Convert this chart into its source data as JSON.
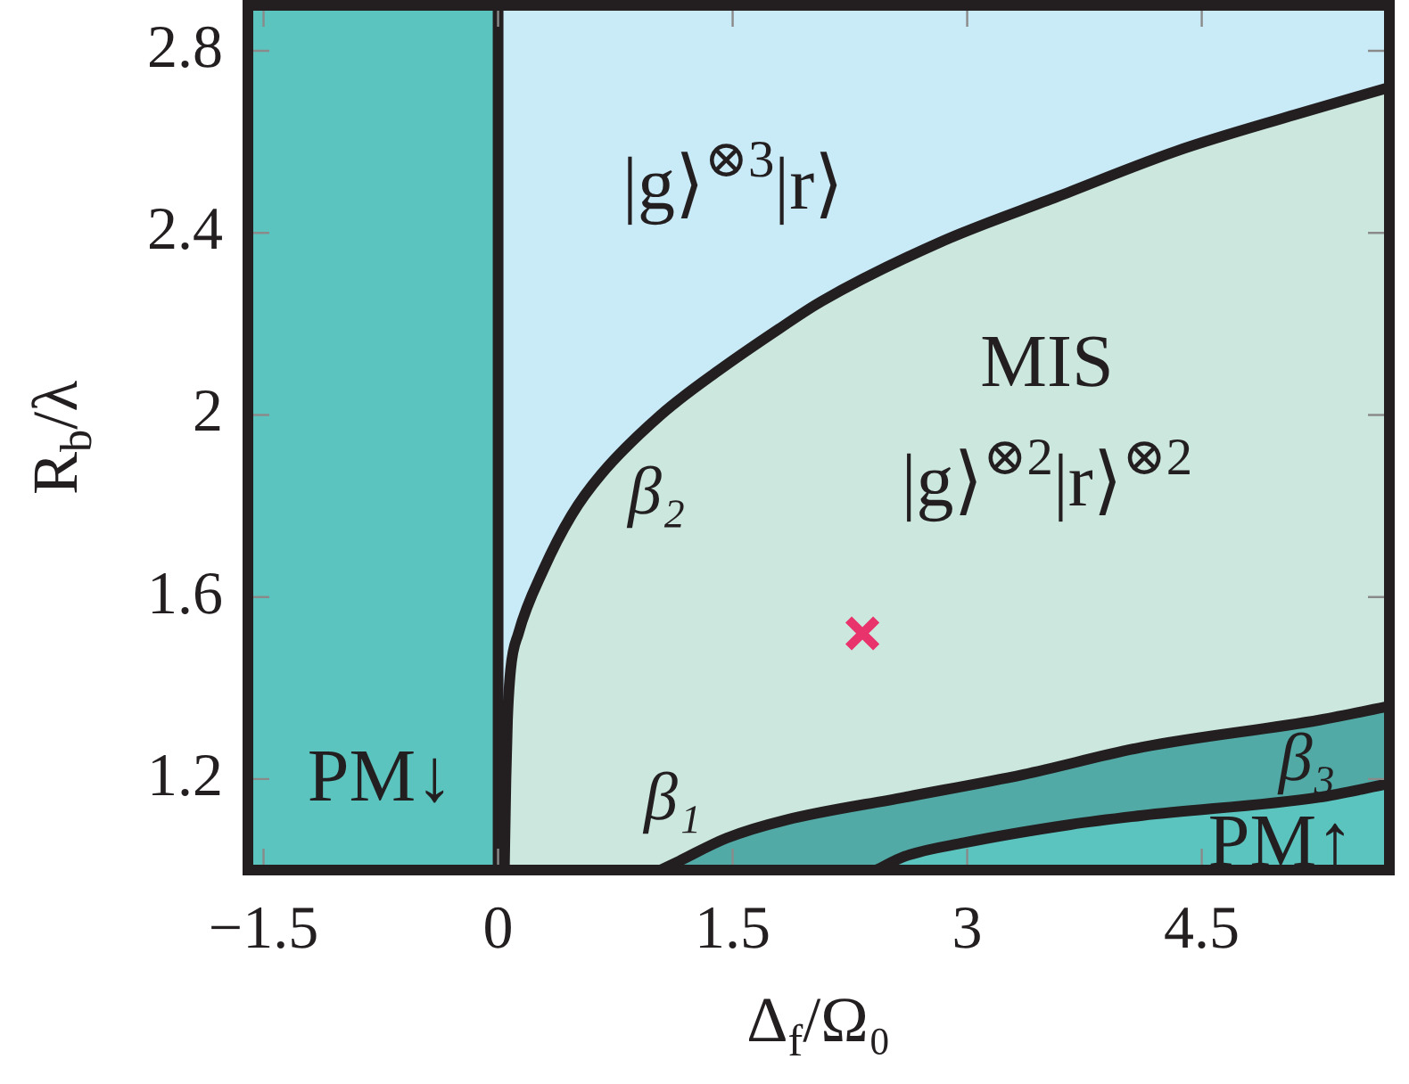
{
  "chart_data": {
    "type": "area",
    "xlabel": "Δ$_{f}$/Ω₀",
    "ylabel": "R$_{b}$/λ",
    "xlim": [
      -1.6,
      5.7
    ],
    "ylim": [
      1.0,
      2.9
    ],
    "xticks": [
      -1.5,
      0,
      1.5,
      3,
      4.5
    ],
    "yticks": [
      1.2,
      1.6,
      2,
      2.4,
      2.8
    ],
    "bands": [
      {
        "axis": "x",
        "from": -1.6,
        "to": 0,
        "color": "#5bc4bf"
      },
      {
        "axis": "x",
        "from": 0,
        "to": 5.7,
        "color": "#c9eaf7"
      }
    ],
    "ref_lines": [
      {
        "axis": "x",
        "value": 0,
        "color": "#231f20"
      }
    ],
    "series": [
      {
        "name": "β₂",
        "color": "#cce8de",
        "x": [
          0.04,
          0.05,
          0.06,
          0.08,
          0.13,
          0.29,
          0.47,
          0.66,
          1.04,
          1.42,
          1.8,
          2.07,
          2.83,
          3.58,
          4.34,
          5.1,
          5.7
        ],
        "values": [
          1.0,
          1.2,
          1.33,
          1.44,
          1.52,
          1.66,
          1.78,
          1.87,
          2.0,
          2.1,
          2.19,
          2.25,
          2.38,
          2.48,
          2.58,
          2.66,
          2.72
        ]
      },
      {
        "name": "β₁",
        "color": "#52aaa6",
        "x": [
          1.04,
          1.16,
          1.46,
          1.84,
          2.6,
          3.36,
          4.12,
          5.26,
          5.7
        ],
        "values": [
          1.0,
          1.02,
          1.07,
          1.11,
          1.16,
          1.21,
          1.27,
          1.33,
          1.36
        ]
      },
      {
        "name": "β₃",
        "color": "#5bc4bf",
        "x": [
          2.42,
          2.6,
          2.98,
          3.66,
          4.12,
          5.25,
          5.7
        ],
        "values": [
          1.0,
          1.03,
          1.06,
          1.1,
          1.12,
          1.16,
          1.19
        ]
      },
      {
        "type": "scatter",
        "color": "#e8336d",
        "marker": "cross",
        "x": [
          2.33
        ],
        "values": [
          1.52
        ]
      }
    ],
    "annotations": [
      "|g⟩$^{⊗3}$|r⟩",
      "MIS",
      "|g⟩$^{⊗2}$|r⟩$^{⊗2}$",
      "PM↓",
      "PM↑"
    ]
  }
}
